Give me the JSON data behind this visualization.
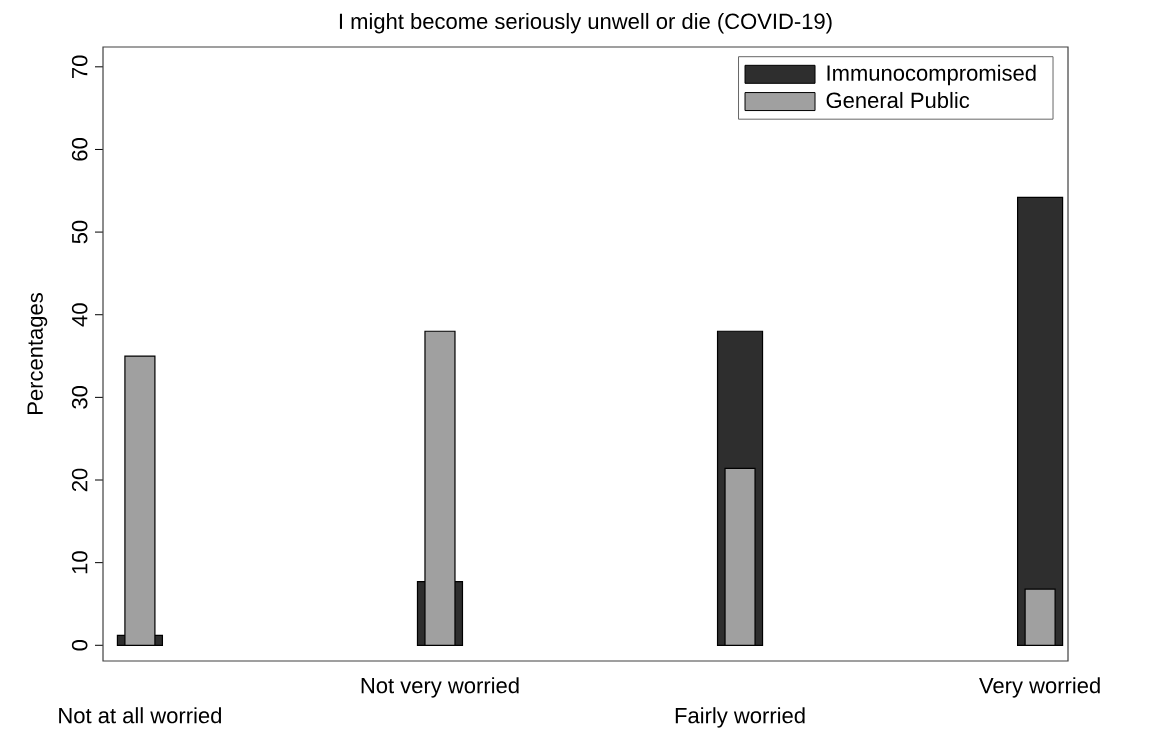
{
  "chart_data": {
    "type": "bar",
    "title": "I might become seriously unwell or die (COVID-19)",
    "ylabel": "Percentages",
    "categories": [
      "Not at all worried",
      "Not very worried",
      "Fairly worried",
      "Very worried"
    ],
    "series": [
      {
        "name": "Immunocompromised",
        "color": "#2e2e2e",
        "values": [
          1.2,
          7.7,
          38,
          54.2
        ]
      },
      {
        "name": "General Public",
        "color": "#a0a0a0",
        "values": [
          35,
          38,
          21.4,
          6.8
        ]
      }
    ],
    "ylim": [
      -1.9,
      72.4
    ],
    "yticks": [
      0,
      10,
      20,
      30,
      40,
      50,
      60,
      70
    ],
    "grid": false,
    "legend": "top right"
  }
}
